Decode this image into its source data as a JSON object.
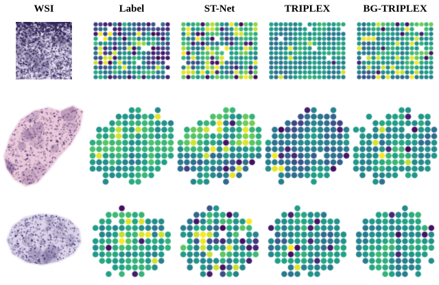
{
  "figure": {
    "columns": [
      {
        "label": "WSI"
      },
      {
        "label": "Label"
      },
      {
        "label": "ST-Net"
      },
      {
        "label": "TRIPLEX"
      },
      {
        "label": "BG-TRIPLEX"
      }
    ],
    "viridis": [
      "#440154",
      "#46327e",
      "#365c8d",
      "#277f8e",
      "#1fa187",
      "#4ac16d",
      "#a0da39",
      "#fde725"
    ],
    "rows": [
      {
        "wsi": {
          "kind": "histology",
          "shape": "rect",
          "seed": 1,
          "bg": "#e9e2f1",
          "stain": "#2c2152",
          "stain2": "#8277ad",
          "dots": 2600,
          "blotches": 14,
          "topband": 600
        },
        "spot": {
          "spacing": 7,
          "radius": 3.1,
          "shape": "rect"
        },
        "maps": [
          {
            "seed": 11,
            "bias": 0.4,
            "spread": 0.4,
            "gx": 0,
            "gy": 0,
            "dark": 0.12,
            "bright": 0.07,
            "missing": 0.05
          },
          {
            "seed": 12,
            "bias": 0.58,
            "spread": 0.36,
            "gx": 0,
            "gy": 0,
            "dark": 0.12,
            "bright": 0.14,
            "missing": 0.03
          },
          {
            "seed": 13,
            "bias": 0.52,
            "spread": 0.16,
            "gx": 0.08,
            "gy": -0.05,
            "dark": 0.02,
            "bright": 0.03,
            "missing": 0.04
          },
          {
            "seed": 14,
            "bias": 0.53,
            "spread": 0.2,
            "gx": 0.18,
            "gy": -0.18,
            "dark": 0.05,
            "bright": 0.07,
            "missing": 0.03
          }
        ]
      },
      {
        "wsi": {
          "kind": "histology",
          "shape": "leafpoly",
          "seed": 2,
          "bg": "#e9cadb",
          "stain": "#503071",
          "stain2": "#a06b93",
          "dots": 1500,
          "blotches": 26,
          "rim": "#f4e0eb"
        },
        "spot": {
          "spacing": 9.5,
          "radius": 4.3,
          "shape": "leaf"
        },
        "maps": [
          {
            "seed": 21,
            "bias": 0.6,
            "spread": 0.2,
            "gx": 0,
            "gy": 0,
            "dark": 0.02,
            "bright": 0.07,
            "missing": 0.01
          },
          {
            "seed": 22,
            "bias": 0.55,
            "spread": 0.26,
            "gx": 0,
            "gy": -0.55,
            "dark": 0.07,
            "bright": 0.12,
            "missing": 0.01
          },
          {
            "seed": 23,
            "bias": 0.4,
            "spread": 0.2,
            "gx": 0,
            "gy": 0,
            "dark": 0.07,
            "bright": 0.02,
            "missing": 0.01
          },
          {
            "seed": 24,
            "bias": 0.52,
            "spread": 0.17,
            "gx": 0,
            "gy": 0,
            "dark": 0.04,
            "bright": 0.05,
            "missing": 0.01
          }
        ]
      },
      {
        "wsi": {
          "kind": "histology",
          "shape": "slabpoly",
          "seed": 3,
          "bg": "#dcd4e9",
          "stain": "#3c2d66",
          "stain2": "#8a7cb3",
          "dots": 1400,
          "blotches": 18,
          "rim": "#efeaf6"
        },
        "spot": {
          "spacing": 9.6,
          "radius": 4.3,
          "shape": "blob"
        },
        "maps": [
          {
            "seed": 31,
            "bias": 0.58,
            "spread": 0.17,
            "gx": 0,
            "gy": 0,
            "dark": 0.04,
            "bright": 0.06,
            "missing": 0.01
          },
          {
            "seed": 32,
            "bias": 0.48,
            "spread": 0.32,
            "gx": 0,
            "gy": 0,
            "dark": 0.12,
            "bright": 0.1,
            "missing": 0.02
          },
          {
            "seed": 33,
            "bias": 0.5,
            "spread": 0.19,
            "gx": 0,
            "gy": 0,
            "dark": 0.07,
            "bright": 0.04,
            "missing": 0.02
          },
          {
            "seed": 34,
            "bias": 0.53,
            "spread": 0.16,
            "gx": 0,
            "gy": 0,
            "dark": 0.06,
            "bright": 0.03,
            "missing": 0.01
          }
        ]
      }
    ]
  }
}
